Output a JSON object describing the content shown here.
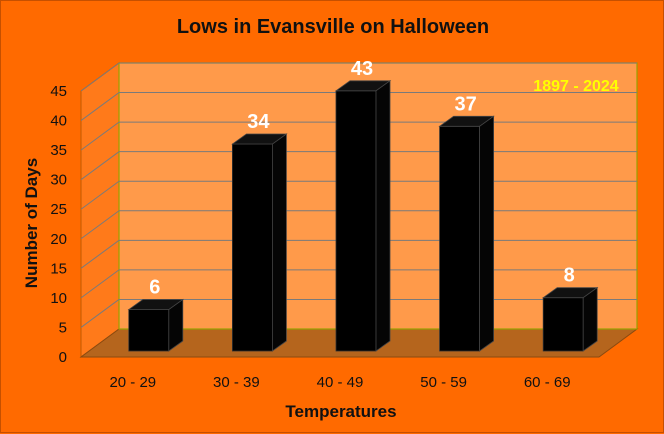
{
  "chart_data": {
    "type": "bar",
    "title": "Lows in Evansville on Halloween",
    "annotation": "1897 - 2024",
    "xlabel": "Temperatures",
    "ylabel": "Number of Days",
    "categories": [
      "20 - 29",
      "30 - 39",
      "40 - 49",
      "50 - 59",
      "60 - 69"
    ],
    "values": [
      6,
      34,
      43,
      37,
      8
    ],
    "data_labels": [
      "6",
      "34",
      "43",
      "37",
      "8"
    ],
    "ylim": [
      0,
      45
    ],
    "yticks": [
      "0",
      "5",
      "10",
      "15",
      "20",
      "25",
      "30",
      "35",
      "40",
      "45"
    ],
    "grid": true,
    "legend": "none",
    "colors": {
      "background": "#ff6a00",
      "plot_wall": "#ff9a4a",
      "floor": "#b5651d",
      "bars": "#000000",
      "data_labels": "#ffffff",
      "annotation": "#ffff00"
    }
  }
}
